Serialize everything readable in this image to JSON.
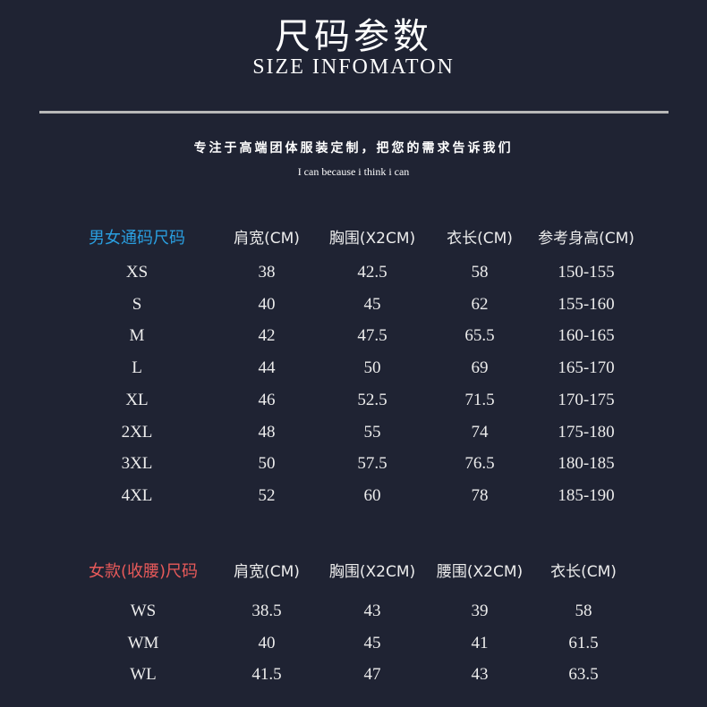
{
  "header": {
    "title": "尺码参数",
    "subtitle": "SIZE INFOMATON",
    "tagline": "专注于高端团体服装定制，把您的需求告诉我们",
    "motto": "I can because i think i can"
  },
  "colors": {
    "background": "#1f2333",
    "unisex_accent": "#2a9fe0",
    "women_accent": "#e85a5a"
  },
  "unisex_table": {
    "headers": [
      "男女通码尺码",
      "肩宽(CM)",
      "胸围(X2CM)",
      "衣长(CM)",
      "参考身高(CM)"
    ],
    "rows": [
      [
        "XS",
        "38",
        "42.5",
        "58",
        "150-155"
      ],
      [
        "S",
        "40",
        "45",
        "62",
        "155-160"
      ],
      [
        "M",
        "42",
        "47.5",
        "65.5",
        "160-165"
      ],
      [
        "L",
        "44",
        "50",
        "69",
        "165-170"
      ],
      [
        "XL",
        "46",
        "52.5",
        "71.5",
        "170-175"
      ],
      [
        "2XL",
        "48",
        "55",
        "74",
        "175-180"
      ],
      [
        "3XL",
        "50",
        "57.5",
        "76.5",
        "180-185"
      ],
      [
        "4XL",
        "52",
        "60",
        "78",
        "185-190"
      ]
    ]
  },
  "women_table": {
    "headers": [
      "女款(收腰)尺码",
      "肩宽(CM)",
      "胸围(X2CM)",
      "腰围(X2CM)",
      "衣长(CM)"
    ],
    "rows": [
      [
        "WS",
        "38.5",
        "43",
        "39",
        "58"
      ],
      [
        "WM",
        "40",
        "45",
        "41",
        "61.5"
      ],
      [
        "WL",
        "41.5",
        "47",
        "43",
        "63.5"
      ]
    ]
  }
}
